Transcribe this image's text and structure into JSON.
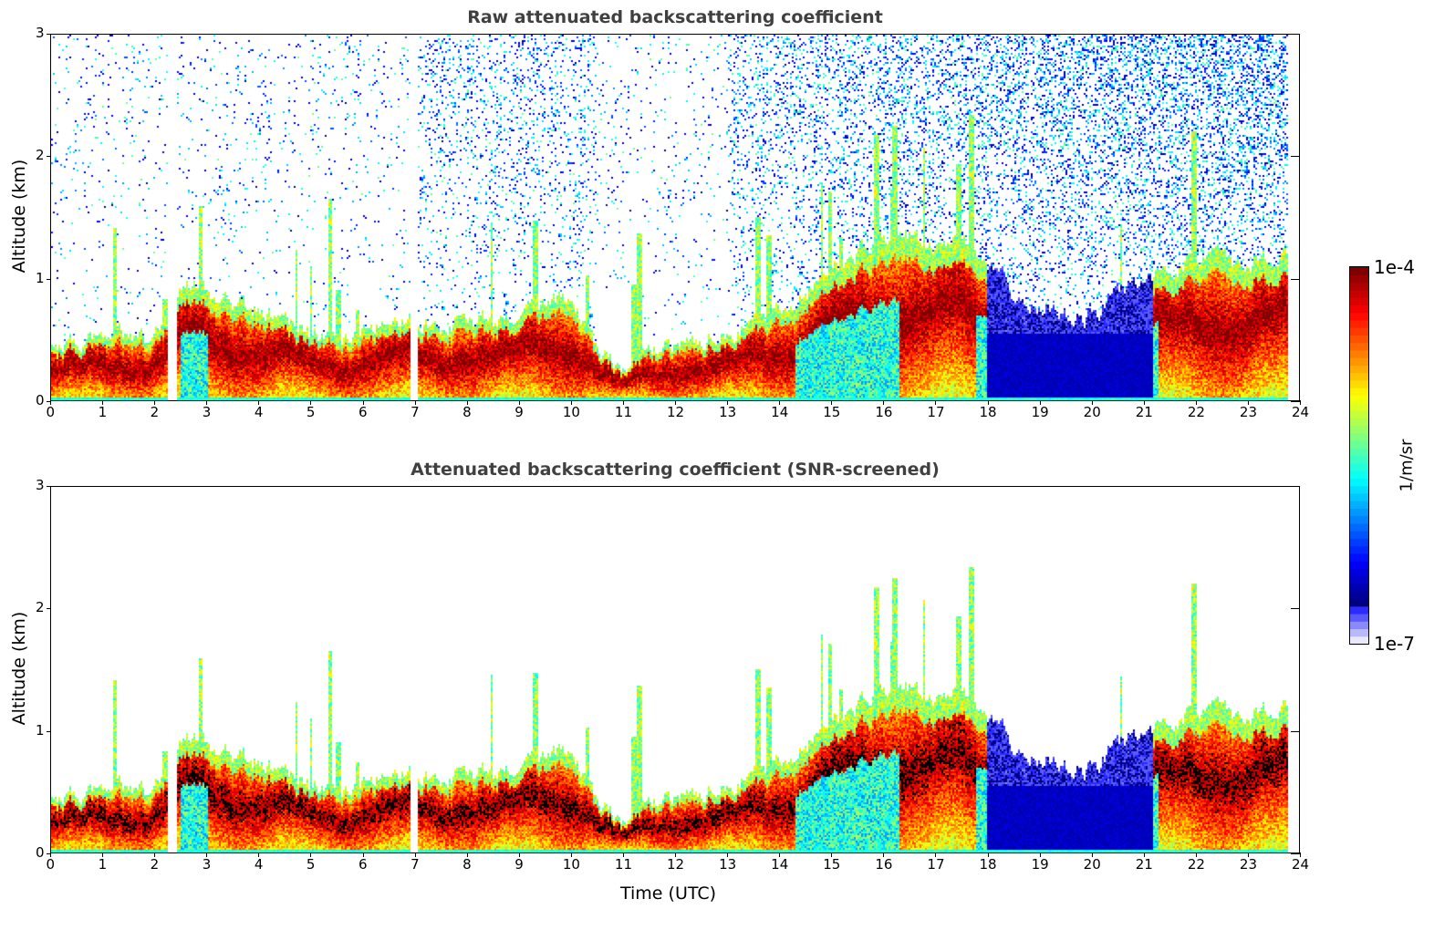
{
  "chart_data": {
    "type": "heatmap",
    "panels": [
      {
        "id": "raw",
        "title": "Raw attenuated backscattering coefficient",
        "ylabel": "Altitude (km)",
        "xlabel": "",
        "snr_screened": false
      },
      {
        "id": "screened",
        "title": "Attenuated backscattering coefficient (SNR-screened)",
        "ylabel": "Altitude (km)",
        "xlabel": "Time (UTC)",
        "snr_screened": true
      }
    ],
    "xlim": [
      0,
      24
    ],
    "ylim": [
      0,
      3
    ],
    "xticks": [
      "0",
      "1",
      "2",
      "3",
      "4",
      "5",
      "6",
      "7",
      "8",
      "9",
      "10",
      "11",
      "12",
      "13",
      "14",
      "15",
      "16",
      "17",
      "18",
      "19",
      "20",
      "21",
      "22",
      "23",
      "24"
    ],
    "yticks": [
      "0",
      "1",
      "2",
      "3"
    ],
    "colorbar": {
      "label": "1/m/sr",
      "min_label": "1e-7",
      "max_label": "1e-4",
      "min": 1e-07,
      "max": 0.0001,
      "scale": "log",
      "colormap": "jet"
    },
    "data_gaps_hours": [
      [
        2.25,
        2.42
      ],
      [
        6.9,
        7.05
      ],
      [
        23.8,
        24
      ]
    ],
    "aerosol_layer_top_km": {
      "time": [
        0,
        1,
        2,
        2.5,
        3,
        4,
        5,
        6,
        6.8,
        7.1,
        8,
        9,
        10,
        10.5,
        11,
        11.3,
        12,
        13,
        14,
        15,
        16,
        17,
        17.5,
        18,
        19,
        20,
        20.5,
        21,
        22,
        23,
        23.8
      ],
      "top": [
        0.45,
        0.55,
        0.5,
        1.0,
        0.9,
        0.75,
        0.55,
        0.55,
        0.7,
        0.6,
        0.65,
        0.7,
        0.85,
        0.45,
        0.25,
        0.35,
        0.45,
        0.55,
        0.75,
        1.05,
        1.35,
        1.3,
        1.3,
        1.1,
        0.75,
        0.7,
        0.85,
        1.0,
        1.2,
        1.1,
        1.3
      ]
    },
    "low_signal_periods_hours": [
      [
        2.5,
        3.0
      ],
      [
        14.3,
        16.3
      ],
      [
        17.8,
        21.3
      ]
    ]
  }
}
